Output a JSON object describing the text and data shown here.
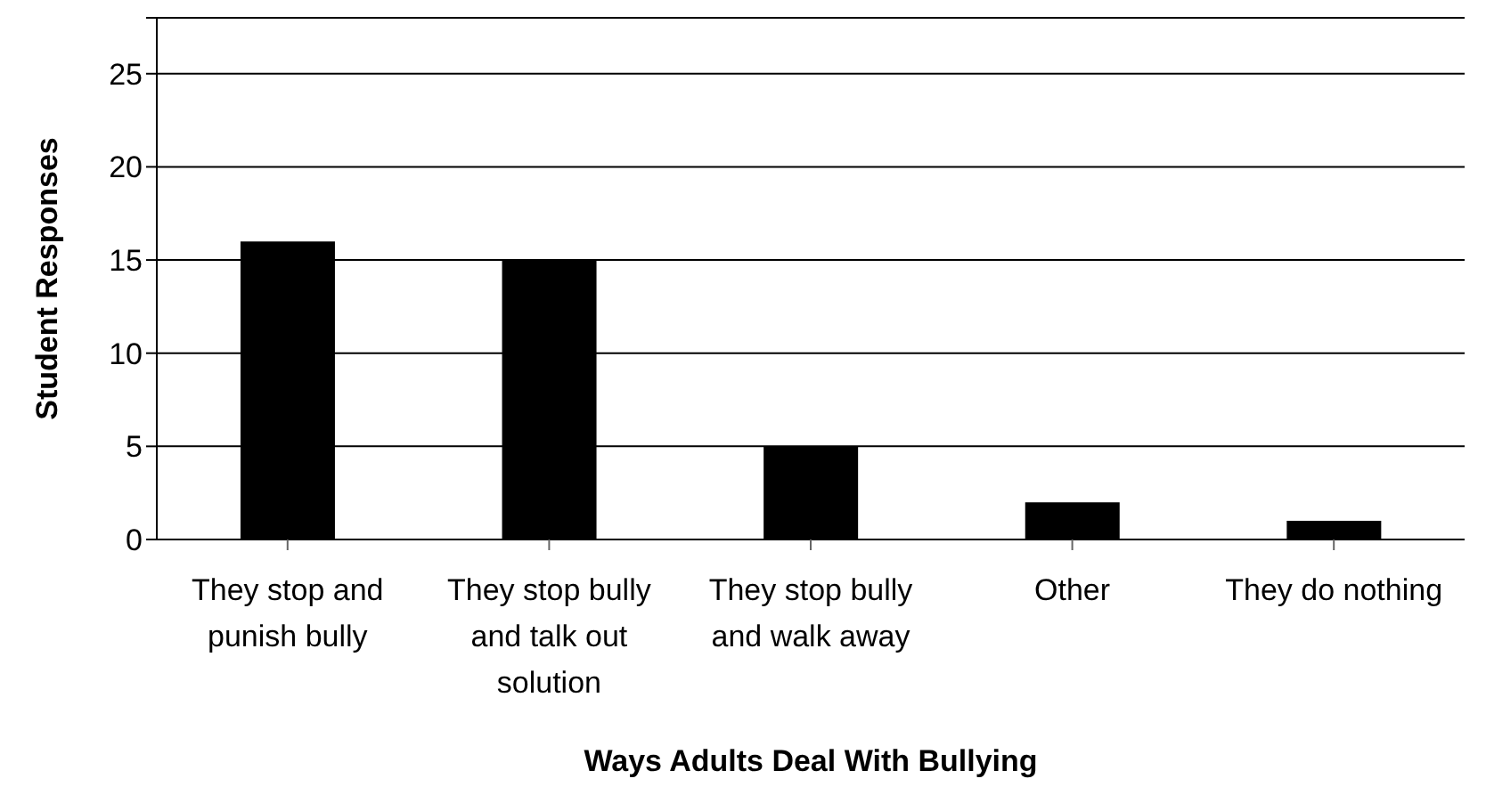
{
  "chart_data": {
    "type": "bar",
    "xlabel": "Ways Adults Deal With Bullying",
    "ylabel": "Student Responses",
    "categories": [
      "They stop and punish bully",
      "They stop bully and talk out solution",
      "They stop bully and walk away",
      "Other",
      "They do nothing"
    ],
    "values": [
      16,
      15,
      5,
      2,
      1
    ],
    "color": "#000000",
    "ylim": [
      0,
      28
    ],
    "yticks": [
      0,
      5,
      10,
      15,
      20,
      25,
      {
        "value": 28,
        "label": null
      }
    ],
    "grid": "y",
    "legend": false
  }
}
